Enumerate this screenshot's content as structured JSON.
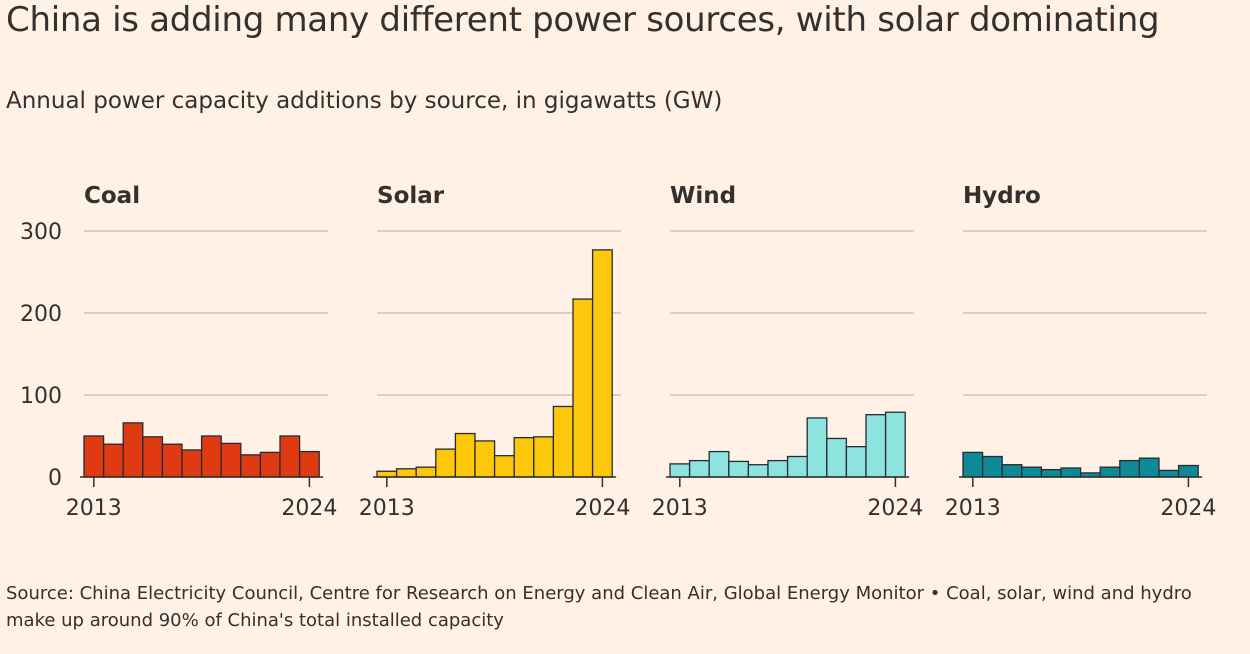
{
  "title": "China is adding many different power sources, with solar dominating",
  "subtitle": "Annual power capacity additions by source, in gigawatts (GW)",
  "source": "Source: China Electricity Council, Centre for Research on Energy and Clean Air, Global Energy Monitor • Coal, solar, wind and hydro make up around 90% of China's total installed capacity",
  "chart_data": [
    {
      "type": "bar",
      "title": "Coal",
      "color": "#e03a12",
      "categories": [
        "2013",
        "2014",
        "2015",
        "2016",
        "2017",
        "2018",
        "2019",
        "2020",
        "2021",
        "2022",
        "2023",
        "2024"
      ],
      "values": [
        50,
        40,
        66,
        49,
        40,
        33,
        50,
        41,
        27,
        30,
        50,
        31
      ],
      "xticks": [
        "2013",
        "2024"
      ],
      "yticks": [
        0,
        100,
        200,
        300
      ],
      "ylim": [
        0,
        300
      ]
    },
    {
      "type": "bar",
      "title": "Solar",
      "color": "#fcc809",
      "categories": [
        "2013",
        "2014",
        "2015",
        "2016",
        "2017",
        "2018",
        "2019",
        "2020",
        "2021",
        "2022",
        "2023",
        "2024"
      ],
      "values": [
        7,
        10,
        12,
        34,
        53,
        44,
        26,
        48,
        49,
        86,
        217,
        277
      ],
      "xticks": [
        "2013",
        "2024"
      ],
      "yticks": [
        0,
        100,
        200,
        300
      ],
      "ylim": [
        0,
        300
      ]
    },
    {
      "type": "bar",
      "title": "Wind",
      "color": "#8de3dd",
      "categories": [
        "2013",
        "2014",
        "2015",
        "2016",
        "2017",
        "2018",
        "2019",
        "2020",
        "2021",
        "2022",
        "2023",
        "2024"
      ],
      "values": [
        16,
        20,
        31,
        19,
        15,
        20,
        25,
        72,
        47,
        37,
        76,
        79
      ],
      "xticks": [
        "2013",
        "2024"
      ],
      "yticks": [
        0,
        100,
        200,
        300
      ],
      "ylim": [
        0,
        300
      ]
    },
    {
      "type": "bar",
      "title": "Hydro",
      "color": "#0e8a97",
      "categories": [
        "2013",
        "2014",
        "2015",
        "2016",
        "2017",
        "2018",
        "2019",
        "2020",
        "2021",
        "2022",
        "2023",
        "2024"
      ],
      "values": [
        30,
        25,
        15,
        12,
        9,
        11,
        5,
        12,
        20,
        23,
        8,
        14
      ],
      "xticks": [
        "2013",
        "2024"
      ],
      "yticks": [
        0,
        100,
        200,
        300
      ],
      "ylim": [
        0,
        300
      ]
    }
  ]
}
